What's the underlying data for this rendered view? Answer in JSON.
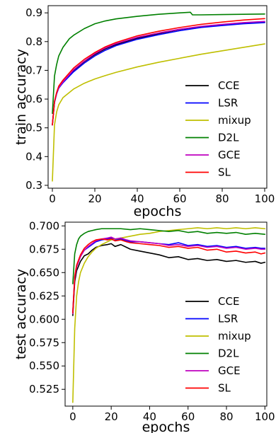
{
  "chart_data": [
    {
      "id": "train",
      "type": "line",
      "xlabel": "epochs",
      "ylabel": "train accuracy",
      "xlim": [
        -2,
        101
      ],
      "ylim": [
        0.29,
        0.925
      ],
      "xticks": [
        0,
        20,
        40,
        60,
        80,
        100
      ],
      "xtick_labels": [
        "0",
        "20",
        "40",
        "60",
        "80",
        "100"
      ],
      "yticks": [
        0.3,
        0.4,
        0.5,
        0.6,
        0.7,
        0.8,
        0.9
      ],
      "ytick_labels": [
        "0.3",
        "0.4",
        "0.5",
        "0.6",
        "0.7",
        "0.8",
        "0.9"
      ],
      "legend_position": "lower-right",
      "grid": false,
      "series": [
        {
          "name": "CCE",
          "color": "#000000",
          "x": [
            0,
            1,
            2,
            3,
            5,
            10,
            15,
            20,
            25,
            30,
            40,
            50,
            60,
            70,
            80,
            90,
            100
          ],
          "y": [
            0.51,
            0.59,
            0.62,
            0.64,
            0.66,
            0.7,
            0.73,
            0.755,
            0.775,
            0.79,
            0.812,
            0.828,
            0.842,
            0.852,
            0.858,
            0.864,
            0.868
          ]
        },
        {
          "name": "LSR",
          "color": "#0000ff",
          "x": [
            0,
            1,
            2,
            3,
            5,
            10,
            15,
            20,
            25,
            30,
            40,
            50,
            60,
            70,
            80,
            90,
            100
          ],
          "y": [
            0.51,
            0.588,
            0.618,
            0.638,
            0.657,
            0.695,
            0.725,
            0.75,
            0.77,
            0.786,
            0.808,
            0.824,
            0.838,
            0.849,
            0.856,
            0.862,
            0.866
          ]
        },
        {
          "name": "mixup",
          "color": "#bfbf00",
          "x": [
            0,
            1,
            2,
            3,
            5,
            10,
            15,
            20,
            25,
            30,
            40,
            50,
            60,
            70,
            80,
            90,
            100
          ],
          "y": [
            0.315,
            0.51,
            0.555,
            0.58,
            0.605,
            0.635,
            0.655,
            0.67,
            0.682,
            0.693,
            0.712,
            0.728,
            0.742,
            0.756,
            0.768,
            0.78,
            0.792
          ]
        },
        {
          "name": "D2L",
          "color": "#008000",
          "x": [
            0,
            1,
            2,
            3,
            5,
            8,
            10,
            15,
            20,
            25,
            30,
            40,
            50,
            60,
            65,
            66,
            70,
            80,
            90,
            100
          ],
          "y": [
            0.55,
            0.68,
            0.72,
            0.75,
            0.78,
            0.81,
            0.822,
            0.845,
            0.862,
            0.872,
            0.879,
            0.888,
            0.895,
            0.9,
            0.902,
            0.893,
            0.893,
            0.894,
            0.895,
            0.896
          ]
        },
        {
          "name": "GCE",
          "color": "#bf00bf",
          "x": [
            0,
            1,
            2,
            3,
            5,
            10,
            15,
            20,
            25,
            30,
            40,
            50,
            60,
            70,
            80,
            90,
            100
          ],
          "y": [
            0.51,
            0.59,
            0.62,
            0.64,
            0.66,
            0.702,
            0.732,
            0.758,
            0.778,
            0.793,
            0.815,
            0.83,
            0.843,
            0.853,
            0.86,
            0.866,
            0.87
          ]
        },
        {
          "name": "SL",
          "color": "#ff0000",
          "x": [
            0,
            1,
            2,
            3,
            5,
            10,
            15,
            20,
            25,
            30,
            40,
            50,
            60,
            70,
            80,
            90,
            100
          ],
          "y": [
            0.51,
            0.592,
            0.623,
            0.645,
            0.666,
            0.708,
            0.738,
            0.762,
            0.782,
            0.797,
            0.82,
            0.836,
            0.849,
            0.86,
            0.868,
            0.875,
            0.88
          ]
        }
      ]
    },
    {
      "id": "test",
      "type": "line",
      "xlabel": "epochs",
      "ylabel": "test accuracy",
      "xlim": [
        -4,
        101
      ],
      "ylim": [
        0.507,
        0.704
      ],
      "xticks": [
        0,
        20,
        40,
        60,
        80,
        100
      ],
      "xtick_labels": [
        "0",
        "20",
        "40",
        "60",
        "80",
        "100"
      ],
      "yticks": [
        0.525,
        0.55,
        0.575,
        0.6,
        0.625,
        0.65,
        0.675,
        0.7
      ],
      "ytick_labels": [
        "0.525",
        "0.550",
        "0.575",
        "0.600",
        "0.625",
        "0.650",
        "0.675",
        "0.700"
      ],
      "legend_position": "lower-right",
      "grid": false,
      "series": [
        {
          "name": "CCE",
          "color": "#000000",
          "x": [
            0,
            1,
            2,
            4,
            6,
            8,
            10,
            12,
            15,
            18,
            20,
            22,
            25,
            28,
            30,
            35,
            40,
            45,
            50,
            55,
            60,
            65,
            70,
            75,
            80,
            85,
            90,
            95,
            98,
            100
          ],
          "y": [
            0.604,
            0.64,
            0.652,
            0.662,
            0.668,
            0.67,
            0.674,
            0.677,
            0.679,
            0.68,
            0.681,
            0.678,
            0.68,
            0.677,
            0.675,
            0.673,
            0.671,
            0.669,
            0.666,
            0.667,
            0.664,
            0.665,
            0.663,
            0.664,
            0.662,
            0.663,
            0.661,
            0.662,
            0.66,
            0.661
          ]
        },
        {
          "name": "LSR",
          "color": "#0000ff",
          "x": [
            0,
            1,
            2,
            4,
            6,
            8,
            10,
            12,
            15,
            18,
            20,
            22,
            25,
            28,
            30,
            35,
            40,
            45,
            50,
            55,
            60,
            65,
            70,
            75,
            80,
            85,
            90,
            95,
            98,
            100
          ],
          "y": [
            0.608,
            0.645,
            0.657,
            0.668,
            0.674,
            0.677,
            0.68,
            0.683,
            0.685,
            0.686,
            0.687,
            0.685,
            0.686,
            0.684,
            0.683,
            0.683,
            0.682,
            0.681,
            0.68,
            0.682,
            0.679,
            0.68,
            0.678,
            0.679,
            0.677,
            0.678,
            0.676,
            0.677,
            0.676,
            0.676
          ]
        },
        {
          "name": "mixup",
          "color": "#bfbf00",
          "x": [
            0,
            1,
            2,
            3,
            4,
            5,
            6,
            8,
            10,
            12,
            15,
            18,
            20,
            25,
            30,
            35,
            40,
            45,
            50,
            55,
            60,
            65,
            70,
            75,
            80,
            85,
            90,
            95,
            100
          ],
          "y": [
            0.511,
            0.59,
            0.625,
            0.64,
            0.65,
            0.655,
            0.66,
            0.667,
            0.672,
            0.676,
            0.68,
            0.683,
            0.685,
            0.687,
            0.689,
            0.691,
            0.692,
            0.694,
            0.695,
            0.696,
            0.697,
            0.698,
            0.697,
            0.698,
            0.697,
            0.698,
            0.697,
            0.698,
            0.697
          ]
        },
        {
          "name": "D2L",
          "color": "#008000",
          "x": [
            0,
            1,
            2,
            3,
            4,
            6,
            8,
            10,
            12,
            15,
            20,
            25,
            30,
            35,
            40,
            45,
            50,
            55,
            60,
            65,
            70,
            75,
            80,
            85,
            90,
            95,
            100
          ],
          "y": [
            0.638,
            0.67,
            0.68,
            0.686,
            0.689,
            0.692,
            0.694,
            0.695,
            0.696,
            0.697,
            0.697,
            0.697,
            0.696,
            0.697,
            0.696,
            0.695,
            0.694,
            0.695,
            0.693,
            0.694,
            0.692,
            0.693,
            0.692,
            0.693,
            0.691,
            0.692,
            0.691
          ]
        },
        {
          "name": "GCE",
          "color": "#bf00bf",
          "x": [
            0,
            1,
            2,
            4,
            6,
            8,
            10,
            12,
            15,
            18,
            20,
            22,
            25,
            28,
            30,
            35,
            40,
            45,
            50,
            55,
            60,
            65,
            70,
            75,
            80,
            85,
            90,
            95,
            98,
            100
          ],
          "y": [
            0.606,
            0.644,
            0.656,
            0.667,
            0.674,
            0.678,
            0.681,
            0.684,
            0.686,
            0.687,
            0.688,
            0.686,
            0.687,
            0.685,
            0.684,
            0.683,
            0.682,
            0.681,
            0.679,
            0.68,
            0.678,
            0.679,
            0.677,
            0.678,
            0.676,
            0.677,
            0.675,
            0.676,
            0.675,
            0.675
          ]
        },
        {
          "name": "SL",
          "color": "#ff0000",
          "x": [
            0,
            1,
            2,
            4,
            6,
            8,
            10,
            12,
            15,
            18,
            20,
            22,
            25,
            28,
            30,
            35,
            40,
            45,
            50,
            55,
            60,
            65,
            70,
            75,
            80,
            85,
            90,
            95,
            98,
            100
          ],
          "y": [
            0.607,
            0.646,
            0.658,
            0.669,
            0.676,
            0.68,
            0.683,
            0.685,
            0.686,
            0.685,
            0.686,
            0.684,
            0.685,
            0.683,
            0.682,
            0.681,
            0.68,
            0.679,
            0.677,
            0.678,
            0.676,
            0.677,
            0.674,
            0.675,
            0.672,
            0.673,
            0.671,
            0.672,
            0.67,
            0.671
          ]
        }
      ]
    }
  ]
}
